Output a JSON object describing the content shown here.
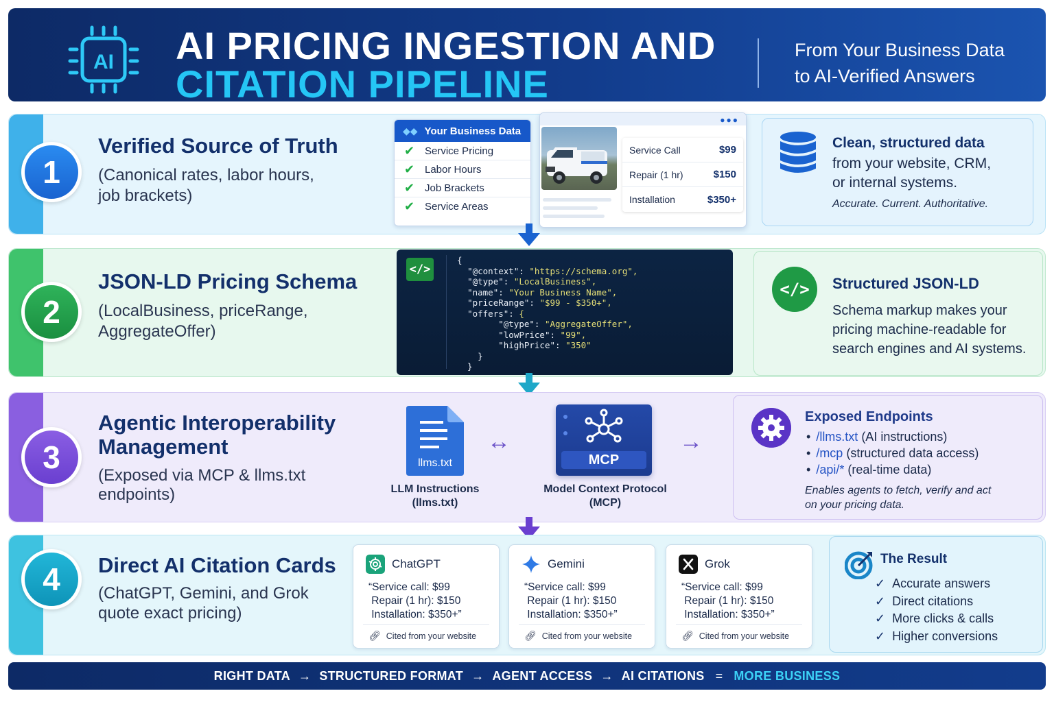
{
  "header": {
    "title_line1": "AI PRICING INGESTION AND",
    "title_line2": "CITATION PIPELINE",
    "subtitle_line1": "From Your Business Data",
    "subtitle_line2": "to AI-Verified Answers",
    "icon_text": "AI",
    "icon": "ai-chip-icon"
  },
  "sections": [
    {
      "number": "1",
      "title": "Verified Source of Truth",
      "desc_line1": "(Canonical rates, labor hours,",
      "desc_line2": "job brackets)"
    },
    {
      "number": "2",
      "title": "JSON-LD Pricing Schema",
      "desc_line1": "(LocalBusiness, priceRange,",
      "desc_line2": "AggregateOffer)"
    },
    {
      "number": "3",
      "title_line1": "Agentic Interoperability",
      "title_line2": "Management",
      "desc_line1": "(Exposed via MCP & llms.txt",
      "desc_line2": "endpoints)"
    },
    {
      "number": "4",
      "title": "Direct AI Citation Cards",
      "desc_line1": "(ChatGPT, Gemini, and Grok",
      "desc_line2": "quote exact pricing)"
    }
  ],
  "business_data": {
    "header": "Your Business Data",
    "items": [
      "Service Pricing",
      "Labor Hours",
      "Job Brackets",
      "Service Areas"
    ]
  },
  "price_card": {
    "rows": [
      {
        "label": "Service Call",
        "value": "$99"
      },
      {
        "label": "Repair (1 hr)",
        "value": "$150"
      },
      {
        "label": "Installation",
        "value": "$350+"
      }
    ]
  },
  "info1": {
    "title": "Clean, structured data",
    "desc_line1": "from your website, CRM,",
    "desc_line2": "or internal systems.",
    "tagline": "Accurate. Current. Authoritative."
  },
  "code": {
    "icon_text": "</>",
    "lines": [
      "{",
      "  \"@context\": \"https://schema.org\",",
      "  \"@type\": \"LocalBusiness\",",
      "  \"name\": \"Your Business Name\",",
      "  \"priceRange\": \"$99 - $350+\",",
      "  \"offers\": {",
      "        \"@type\": \"AggregateOffer\",",
      "        \"lowPrice\": \"99\",",
      "        \"highPrice\": \"350\"",
      "    }",
      "  }"
    ]
  },
  "info2": {
    "icon_text": "</>",
    "title": "Structured JSON-LD",
    "desc_line1": "Schema markup makes your",
    "desc_line2": "pricing machine-readable for",
    "desc_line3": "search engines and AI systems."
  },
  "section3_visual": {
    "llms_file": "llms.txt",
    "llms_label_line1": "LLM Instructions",
    "llms_label_line2": "(llms.txt)",
    "mcp_pill": "MCP",
    "mcp_label_line1": "Model Context Protocol",
    "mcp_label_line2": "(MCP)",
    "arrow_between": "↔",
    "arrow_right": "→"
  },
  "info3": {
    "title": "Exposed Endpoints",
    "endpoints": [
      {
        "path": "/llms.txt",
        "desc": " (AI instructions)"
      },
      {
        "path": "/mcp",
        "desc": " (structured data access)"
      },
      {
        "path": "/api/*",
        "desc": " (real-time data)"
      }
    ],
    "note_line1": "Enables agents to fetch, verify and act",
    "note_line2": "on your pricing data."
  },
  "cards": [
    {
      "name": "ChatGPT",
      "icon": "chatgpt-logo-icon",
      "quote": "“Service call: $99\n Repair (1 hr): $150\n Installation: $350+”",
      "cite": "Cited from your website"
    },
    {
      "name": "Gemini",
      "icon": "gemini-logo-icon",
      "quote": "“Service call: $99\n Repair (1 hr): $150\n Installation: $350+”",
      "cite": "Cited from your website"
    },
    {
      "name": "Grok",
      "icon": "grok-logo-icon",
      "quote": "“Service call: $99\n Repair (1 hr): $150\n Installation: $350+”",
      "cite": "Cited from your website"
    }
  ],
  "result": {
    "title": "The Result",
    "items": [
      "Accurate answers",
      "Direct citations",
      "More clicks & calls",
      "Higher conversions"
    ]
  },
  "footer": {
    "step1": "RIGHT DATA",
    "step2": "STRUCTURED FORMAT",
    "step3": "AGENT ACCESS",
    "step4": "AI CITATIONS",
    "arrow": "→",
    "equals": "=",
    "result": "MORE BUSINESS"
  },
  "colors": {
    "header_bg": "#0d2a66",
    "accent_cyan": "#25c6f5",
    "step1": "#1a63d0",
    "step2": "#1a8f40",
    "step3": "#6a3fd0",
    "step4": "#0e94b8"
  }
}
